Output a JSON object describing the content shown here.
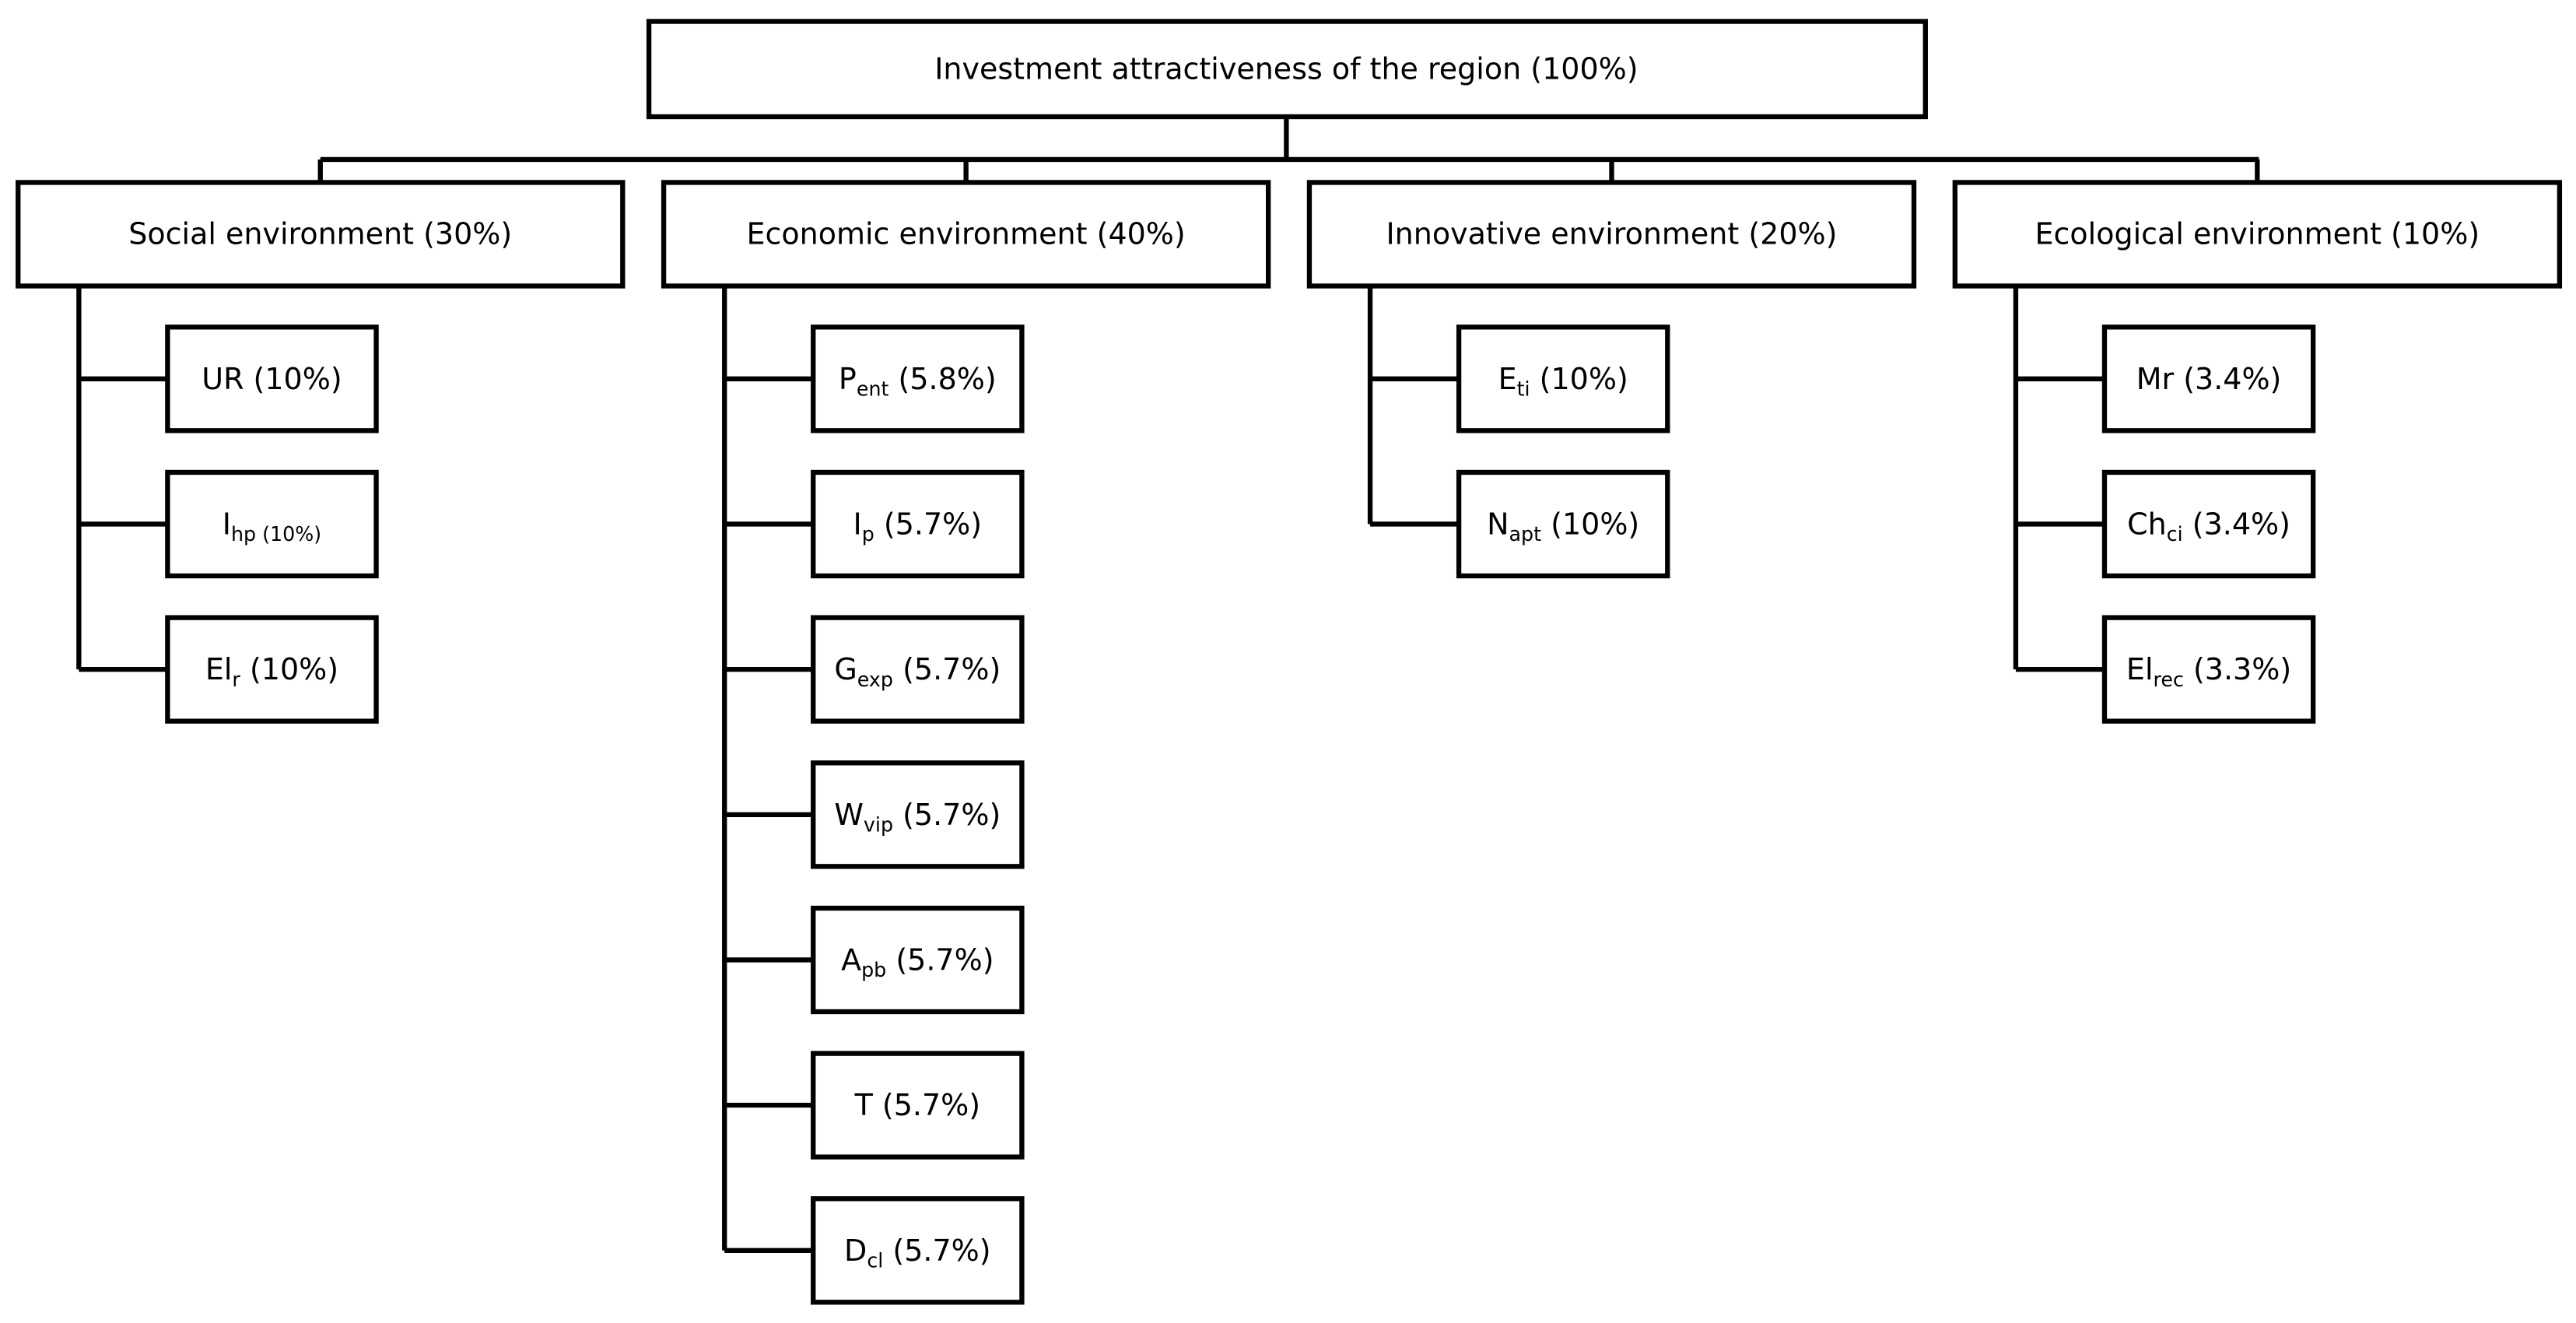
{
  "root": {
    "label": "Investment attractiveness of the region (100%)"
  },
  "groups": [
    {
      "label": "Social environment (30%)",
      "children": [
        {
          "text": "UR (10%)"
        },
        {
          "text": "I",
          "sub": "hp (10%)"
        },
        {
          "text": "El",
          "sub": "r",
          "tail": " (10%)"
        }
      ]
    },
    {
      "label": "Economic environment (40%)",
      "children": [
        {
          "text": "P",
          "sub": "ent",
          "tail": " (5.8%)"
        },
        {
          "text": "I",
          "sub": "p",
          "tail": " (5.7%)"
        },
        {
          "text": "G",
          "sub": "exp",
          "tail": " (5.7%)"
        },
        {
          "text": "W",
          "sub": "vip",
          "tail": " (5.7%)"
        },
        {
          "text": "A",
          "sub": "pb",
          "tail": " (5.7%)"
        },
        {
          "text": "T (5.7%)"
        },
        {
          "text": "D",
          "sub": "cl",
          "tail": " (5.7%)"
        }
      ]
    },
    {
      "label": "Innovative environment (20%)",
      "children": [
        {
          "text": "E",
          "sub": "ti",
          "tail": " (10%)"
        },
        {
          "text": "N",
          "sub": "apt",
          "tail": " (10%)"
        }
      ]
    },
    {
      "label": "Ecological environment (10%)",
      "children": [
        {
          "text": "Mr (3.4%)"
        },
        {
          "text": "Ch",
          "sub": "ci",
          "tail": " (3.4%)"
        },
        {
          "text": "El",
          "sub": "rec",
          "tail": " (3.3%)"
        }
      ]
    }
  ]
}
